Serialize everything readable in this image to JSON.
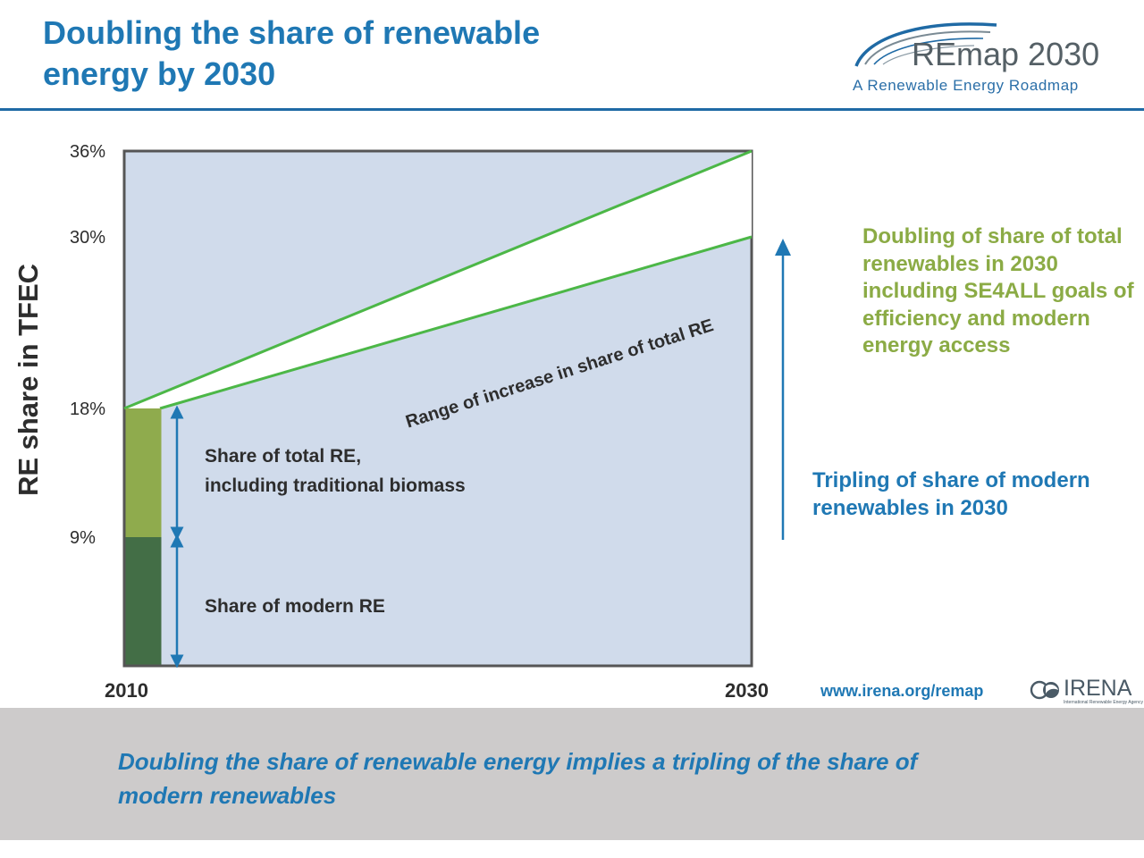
{
  "slide": {
    "title": "Doubling the share of renewable energy by 2030",
    "caption": "Doubling the share of renewable energy implies a tripling of the share of modern renewables",
    "url": "www.irena.org/remap"
  },
  "logos": {
    "remap_name": "REmap 2030",
    "remap_tagline": "A Renewable Energy Roadmap",
    "irena_name": "IRENA",
    "irena_subtitle": "International Renewable Energy Agency"
  },
  "chart_data": {
    "type": "area",
    "title": "",
    "xlabel": "",
    "ylabel": "RE share in TFEC",
    "x": [
      "2010",
      "2030"
    ],
    "ylim": [
      0,
      36
    ],
    "yticks": [
      {
        "value": 36,
        "label": "36%"
      },
      {
        "value": 30,
        "label": "30%"
      },
      {
        "value": 18,
        "label": "18%"
      },
      {
        "value": 9,
        "label": "9%"
      }
    ],
    "series": [
      {
        "name": "Share of modern RE",
        "values": [
          9,
          null
        ],
        "color": "#436e46"
      },
      {
        "name": "Share of total RE, including traditional biomass",
        "values": [
          18,
          null
        ],
        "color": "#8fab4d"
      },
      {
        "name": "Range of increase in share of total RE",
        "range_start": 18,
        "range_end": [
          30,
          36
        ],
        "color": "#ffffff",
        "edge_color": "#4cb747"
      }
    ],
    "background_color": "#d0dbeb",
    "annotations": [
      {
        "id": "range",
        "text": "Range of increase in share of total RE"
      },
      {
        "id": "total_re",
        "lines": [
          "Share of total RE,",
          "including traditional biomass"
        ],
        "range": [
          9,
          18
        ]
      },
      {
        "id": "modern_re",
        "text": "Share of modern RE",
        "range": [
          0,
          9
        ]
      },
      {
        "id": "doubling",
        "text": "Doubling of share of total renewables in 2030 including SE4ALL goals of efficiency and modern energy access",
        "color": "#8bab45"
      },
      {
        "id": "tripling",
        "text": "Tripling of share of modern renewables in 2030",
        "color": "#1f78b4"
      }
    ]
  }
}
